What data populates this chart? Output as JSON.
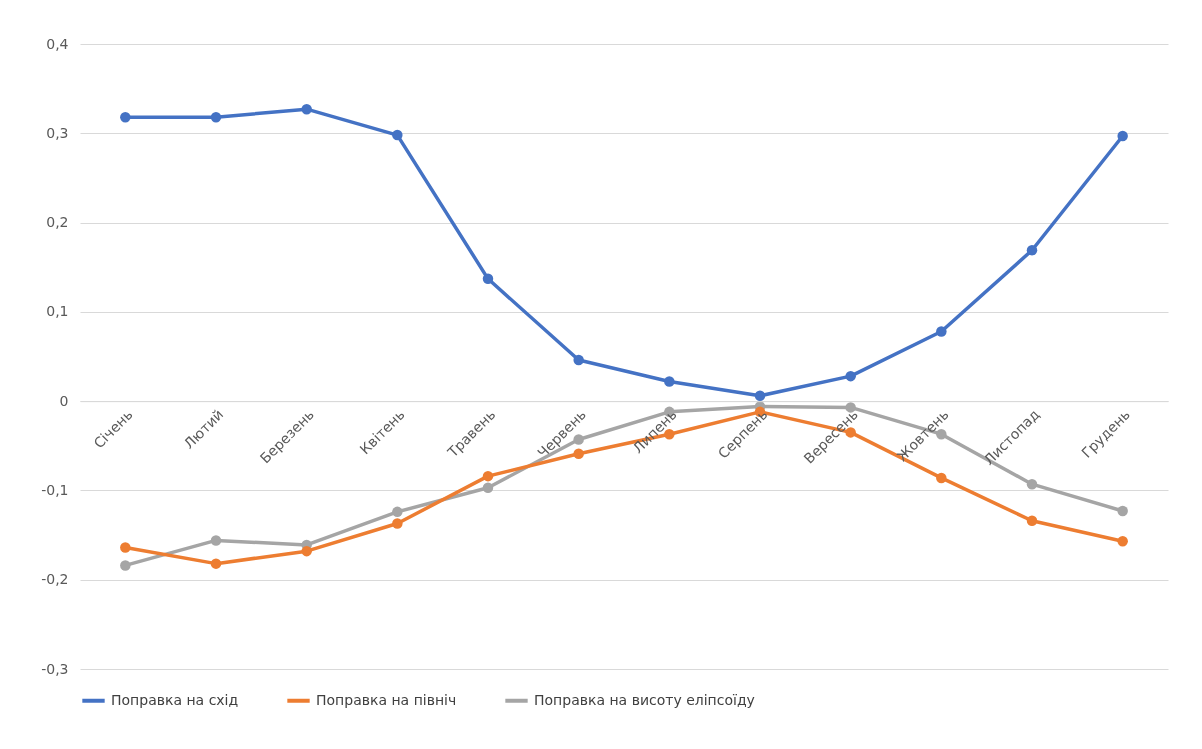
{
  "chart_data": {
    "type": "line",
    "categories": [
      "Січень",
      "Лютий",
      "Березень",
      "Квітень",
      "Травень",
      "Червень",
      "Липень",
      "Серпень",
      "Вересень",
      "Жовтень",
      "Листопад",
      "Грудень"
    ],
    "series": [
      {
        "name": "Поправка на схід",
        "color": "#4472c4",
        "values": [
          0.318,
          0.318,
          0.327,
          0.298,
          0.137,
          0.046,
          0.022,
          0.006,
          0.028,
          0.078,
          0.169,
          0.297
        ]
      },
      {
        "name": "Поправка на північ",
        "color": "#ed7d31",
        "values": [
          -0.164,
          -0.182,
          -0.168,
          -0.137,
          -0.084,
          -0.059,
          -0.037,
          -0.012,
          -0.035,
          -0.086,
          -0.134,
          -0.157
        ]
      },
      {
        "name": "Поправка на висоту еліпсоїду",
        "color": "#a5a5a5",
        "values": [
          -0.184,
          -0.156,
          -0.161,
          -0.124,
          -0.097,
          -0.043,
          -0.012,
          -0.006,
          -0.007,
          -0.037,
          -0.093,
          -0.123
        ]
      }
    ],
    "ylim": [
      -0.3,
      0.4
    ],
    "yticks": [
      {
        "value": -0.3,
        "label": "-0,3"
      },
      {
        "value": -0.2,
        "label": "-0,2"
      },
      {
        "value": -0.1,
        "label": "-0,1"
      },
      {
        "value": 0,
        "label": "0"
      },
      {
        "value": 0.1,
        "label": "0,1"
      },
      {
        "value": 0.2,
        "label": "0,2"
      },
      {
        "value": 0.3,
        "label": "0,3"
      },
      {
        "value": 0.4,
        "label": "0,4"
      }
    ],
    "grid": "y",
    "legend": "bottom",
    "marker": "circle",
    "line_style": "solid"
  }
}
